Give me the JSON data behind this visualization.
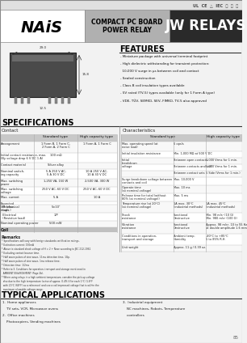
{
  "bg_color": "#f2f2f2",
  "white": "#ffffff",
  "black": "#000000",
  "dark_gray": "#2d2d2d",
  "mid_gray": "#aaaaaa",
  "light_gray": "#c8c8c8",
  "header_dark": "#2a2a2a",
  "header_light_bg": "#b0b0b0",
  "title": "JW RELAYS",
  "subtitle1": "COMPACT PC BOARD",
  "subtitle2": "POWER RELAY",
  "brand": "NAiS",
  "cert_icons": "UL  CE  △  IEC  Ⓡ  Ⓢ  Ⓞ",
  "features_title": "FEATURES",
  "features": [
    "- Miniature package with universal terminal footprint",
    "- High dielectric withstanding for transient protection:",
    "  10,000 V surge in μs between coil and contact",
    "- Sealed construction",
    "- Class B coil insulation types available",
    "- 5V rated (TV-5) types available (only for 1 Form A type)",
    "- VDE, TÜV, SEMKO, SEV, FIMKO, TV-5 also approved"
  ],
  "specs_title": "SPECIFICATIONS",
  "contact_title": "Contact",
  "char_title": "Characteristics",
  "typical_title": "TYPICAL APPLICATIONS",
  "typical_col1": [
    "1.  Home appliances",
    "    TV sets, VCR, Microwave ovens",
    "2.  Office machines",
    "    Photocopiers, Vending machines"
  ],
  "typical_col2": [
    "3.  Industrial equipment",
    "    NC machines, Robots, Temperature",
    "    controllers"
  ],
  "remarks_title": "Remarks",
  "remarks": [
    "* Specifications will vary with foreign standards certification ratings.",
    "* Extinction current: 150mA",
    "* Above is standard shock voltage of H = 2 + Nose according to JEC 212-1961",
    "* Excluding contact bounce time.",
    "* Half wave pulses of sine wave, 11ms detection time, 1Gp.",
    "* Half wave pulses of sine wave, 1ms release time.",
    "* Detection time: 1/2ms",
    "* Refer to 3. Conditions for operation, transport and storage mentioned in",
    "  AMBIENT ENVIRONMENT (Page 2b).",
    "* When using relays in a high ambient temperature, consider the pick-up voltage",
    "  also due to the high temperature (a rise of approx. 0.4% V for each 1°C (1.8°F",
    "  with 20°C (68°F) as a reference) and use a coil impressed voltage that is within the",
    "  maximum allowable voltage range."
  ],
  "page_num": "85"
}
